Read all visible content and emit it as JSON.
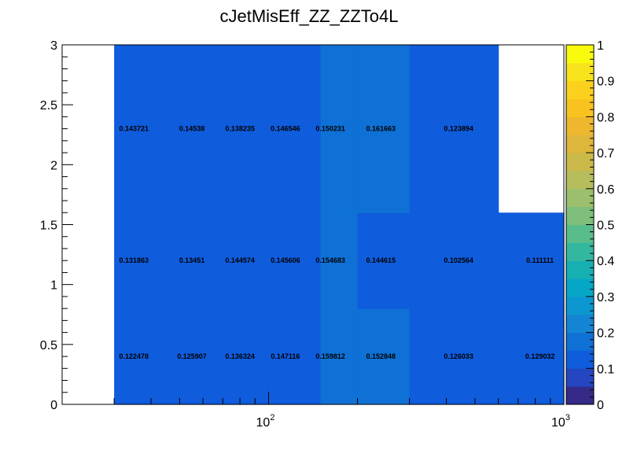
{
  "chart_data": {
    "type": "heatmap",
    "title": "cJetMisEff_ZZ_ZZTo4L",
    "xlabel": "",
    "ylabel": "",
    "x_scale": "log",
    "xlim": [
      20,
      1000
    ],
    "ylim": [
      0,
      3
    ],
    "x_edges": [
      30,
      40,
      50,
      60,
      80,
      100,
      150,
      200,
      300,
      600,
      1000
    ],
    "y_edges": [
      0,
      0.8,
      1.6,
      3.0
    ],
    "y_tick_labels": [
      "0",
      "0.5",
      "1",
      "1.5",
      "2",
      "2.5",
      "3"
    ],
    "x_tick_labels": [
      {
        "base": "10",
        "exp": "2"
      },
      {
        "base": "10",
        "exp": "3"
      }
    ],
    "z_range": [
      0,
      1
    ],
    "colorbar_labels": [
      "0",
      "0.1",
      "0.2",
      "0.3",
      "0.4",
      "0.5",
      "0.6",
      "0.7",
      "0.8",
      "0.9",
      "1"
    ],
    "colorbar_colors": [
      "#352a87",
      "#2446c0",
      "#0f5cdd",
      "#0f71d6",
      "#1485d4",
      "#0d97d0",
      "#06a6c6",
      "#17b0b2",
      "#33b89f",
      "#59bd8b",
      "#7dbf7b",
      "#9bbf6c",
      "#b5bd5c",
      "#cbb94a",
      "#deb63c",
      "#efb72d",
      "#f8c21f",
      "#fbd11d",
      "#f7e21b",
      "#f9fb0e"
    ],
    "cell_label_rows": [
      {
        "y": 0.4,
        "labels": [
          {
            "x": 35,
            "text": "0.122478"
          },
          {
            "x": 55,
            "text": "0.125907"
          },
          {
            "x": 80,
            "text": "0.136324"
          },
          {
            "x": 114,
            "text": "0.147116"
          },
          {
            "x": 162,
            "text": "0.159812"
          },
          {
            "x": 240,
            "text": "0.152848"
          },
          {
            "x": 440,
            "text": "0.126033"
          },
          {
            "x": 830,
            "text": "0.129032"
          }
        ]
      },
      {
        "y": 1.2,
        "labels": [
          {
            "x": 35,
            "text": "0.131863"
          },
          {
            "x": 55,
            "text": "0.13451"
          },
          {
            "x": 80,
            "text": "0.144574"
          },
          {
            "x": 114,
            "text": "0.145606"
          },
          {
            "x": 162,
            "text": "0.154683"
          },
          {
            "x": 240,
            "text": "0.144615"
          },
          {
            "x": 440,
            "text": "0.102564"
          },
          {
            "x": 830,
            "text": "0.111111"
          }
        ]
      },
      {
        "y": 2.3,
        "labels": [
          {
            "x": 35,
            "text": "0.143721"
          },
          {
            "x": 55,
            "text": "0.14538"
          },
          {
            "x": 80,
            "text": "0.138235"
          },
          {
            "x": 114,
            "text": "0.146546"
          },
          {
            "x": 162,
            "text": "0.150231"
          },
          {
            "x": 240,
            "text": "0.161663"
          },
          {
            "x": 440,
            "text": "0.123894"
          }
        ]
      }
    ],
    "z_values": [
      [
        0.122478,
        0.122478,
        0.125907,
        0.136324,
        0.136324,
        0.147116,
        0.159812,
        0.152848,
        0.126033,
        0.129032
      ],
      [
        0.131863,
        0.131863,
        0.13451,
        0.144574,
        0.144574,
        0.145606,
        0.154683,
        0.144615,
        0.102564,
        0.111111
      ],
      [
        0.143721,
        0.143721,
        0.14538,
        0.138235,
        0.138235,
        0.146546,
        0.150231,
        0.161663,
        0.123894,
        null
      ]
    ]
  }
}
